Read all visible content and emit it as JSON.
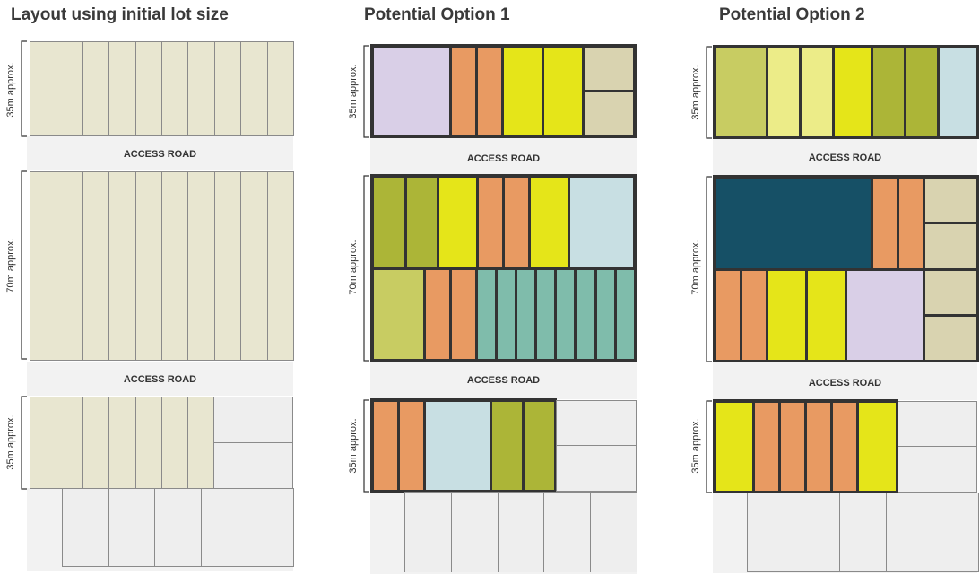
{
  "titles": [
    "Layout using initial lot size",
    "Potential Option 1",
    "Potential Option 2"
  ],
  "road_label": "ACCESS ROAD",
  "dimensions": {
    "small": "35m approx.",
    "large": "70m approx."
  },
  "colors": {
    "cream": "#e8e6d0",
    "empty": "#eeeeee",
    "orange": "#e89a62",
    "yellow": "#e5e519",
    "pale_yellow": "#ecec88",
    "lime": "#c8cc62",
    "olive": "#acb537",
    "lavender": "#d9cfe7",
    "tan": "#d9d3b0",
    "light_blue": "#c8dfe3",
    "teal": "#7fbcab",
    "navy": "#165066"
  }
}
